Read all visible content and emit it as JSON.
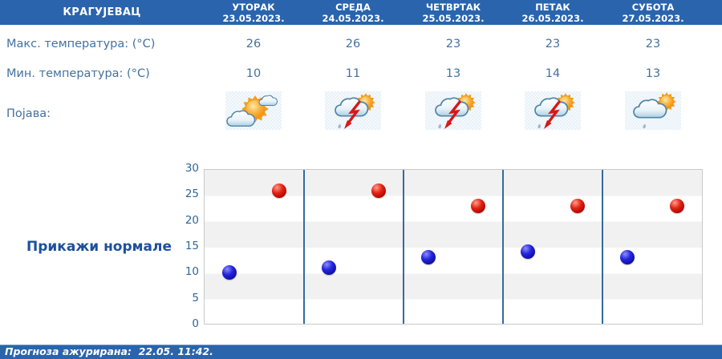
{
  "header": {
    "location": "КРАГУЈЕВАЦ",
    "days": [
      {
        "name": "УТОРАК",
        "date": "23.05.2023."
      },
      {
        "name": "СРЕДА",
        "date": "24.05.2023."
      },
      {
        "name": "ЧЕТВРТАК",
        "date": "25.05.2023."
      },
      {
        "name": "ПЕТАК",
        "date": "26.05.2023."
      },
      {
        "name": "СУБОТА",
        "date": "27.05.2023."
      }
    ]
  },
  "table": {
    "rows": [
      {
        "label": "Макс. температура: (°C)",
        "values": [
          "26",
          "26",
          "23",
          "23",
          "23"
        ]
      },
      {
        "label": "Мин. температура: (°C)",
        "values": [
          "10",
          "11",
          "13",
          "14",
          "13"
        ]
      }
    ],
    "phenomena_label": "Појава:",
    "icons": [
      "partly-cloudy",
      "thunderstorm-sun",
      "thunderstorm-sun",
      "thunderstorm-sun",
      "rain-sun"
    ]
  },
  "normals_button": "Прикажи нормале",
  "chart_data": {
    "type": "scatter",
    "categories": [
      "23.05.2023.",
      "24.05.2023.",
      "25.05.2023.",
      "26.05.2023.",
      "27.05.2023."
    ],
    "series": [
      {
        "name": "max-temperature",
        "color": "#cc0000",
        "values": [
          26,
          26,
          23,
          23,
          23
        ]
      },
      {
        "name": "min-temperature",
        "color": "#1414cc",
        "values": [
          10,
          11,
          13,
          14,
          13
        ]
      }
    ],
    "ylim": [
      0,
      30
    ],
    "ytick_step": 5,
    "grid": "horizontal alternating bands, vertical day separators",
    "legend": "none",
    "title": "",
    "xlabel": "",
    "ylabel": ""
  },
  "footer": {
    "updated_text": "Прогноза ажурирана:  22.05. 11:42."
  },
  "colors": {
    "header_bg": "#2a64ad",
    "table_text": "#44719f",
    "link_text": "#1d4f9d",
    "axis_text": "#2f6699",
    "band_gray": "#f1f1f1",
    "day_separator": "#336b9e",
    "max_dot": "#cc0000",
    "min_dot": "#1414cc"
  }
}
